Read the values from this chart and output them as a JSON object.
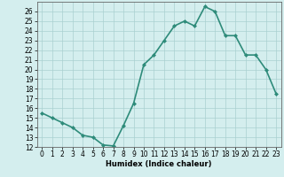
{
  "xlabel": "Humidex (Indice chaleur)",
  "x": [
    0,
    1,
    2,
    3,
    4,
    5,
    6,
    7,
    8,
    9,
    10,
    11,
    12,
    13,
    14,
    15,
    16,
    17,
    18,
    19,
    20,
    21,
    22,
    23
  ],
  "y": [
    15.5,
    15.0,
    14.5,
    14.0,
    13.2,
    13.0,
    12.2,
    12.1,
    14.2,
    16.5,
    20.5,
    21.5,
    23.0,
    24.5,
    25.0,
    24.5,
    26.5,
    26.0,
    23.5,
    23.5,
    21.5,
    21.5,
    20.0,
    17.5
  ],
  "line_color": "#2e8b7a",
  "marker": "D",
  "marker_size": 2.0,
  "ylim": [
    12,
    27
  ],
  "xlim": [
    -0.5,
    23.5
  ],
  "yticks": [
    12,
    13,
    14,
    15,
    16,
    17,
    18,
    19,
    20,
    21,
    22,
    23,
    24,
    25,
    26
  ],
  "xticks": [
    0,
    1,
    2,
    3,
    4,
    5,
    6,
    7,
    8,
    9,
    10,
    11,
    12,
    13,
    14,
    15,
    16,
    17,
    18,
    19,
    20,
    21,
    22,
    23
  ],
  "bg_color": "#d4eeee",
  "grid_color": "#aad0d0",
  "linewidth": 1.2,
  "label_fontsize": 6.0,
  "tick_fontsize": 5.5
}
